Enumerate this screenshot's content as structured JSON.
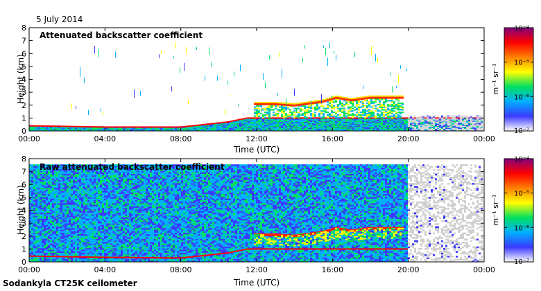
{
  "date_label": "5 July 2014",
  "footer": "Sodankyla CT25K ceilometer",
  "colorbar": {
    "unit": "m⁻¹ sr⁻¹",
    "ticks": [
      {
        "label": "10⁻⁴",
        "exp": -4
      },
      {
        "label": "10⁻⁵",
        "exp": -5
      },
      {
        "label": "10⁻⁶",
        "exp": -6
      },
      {
        "label": "10⁻⁷",
        "exp": -7
      }
    ],
    "range_log10": [
      -7,
      -4
    ],
    "colors": [
      "#ffffff",
      "#3b3bff",
      "#00b0ff",
      "#00e060",
      "#ffff00",
      "#ff8000",
      "#ff0000",
      "#800080"
    ]
  },
  "chart_data": [
    {
      "type": "heatmap",
      "title": "Attenuated backscatter coefficient",
      "xlabel": "Time (UTC)",
      "ylabel": "Height (km)",
      "xlim": [
        0,
        24
      ],
      "ylim": [
        0,
        8
      ],
      "x_ticks": [
        "00:00",
        "04:00",
        "08:00",
        "12:00",
        "16:00",
        "20:00",
        "00:00"
      ],
      "y_ticks": [
        0,
        1,
        2,
        3,
        4,
        5,
        6,
        7,
        8
      ],
      "boundary_layer_top_km": [
        {
          "time_h": 0,
          "height_km": 0.4
        },
        {
          "time_h": 4,
          "height_km": 0.3
        },
        {
          "time_h": 8,
          "height_km": 0.3
        },
        {
          "time_h": 10.5,
          "height_km": 0.7
        },
        {
          "time_h": 11.5,
          "height_km": 1.0
        }
      ],
      "cloud_layer_km": [
        {
          "time_h": 11.8,
          "height_km": 2.1
        },
        {
          "time_h": 13,
          "height_km": 2.1
        },
        {
          "time_h": 14,
          "height_km": 2.0
        },
        {
          "time_h": 15.5,
          "height_km": 2.3
        },
        {
          "time_h": 16.2,
          "height_km": 2.6
        },
        {
          "time_h": 17,
          "height_km": 2.4
        },
        {
          "time_h": 18,
          "height_km": 2.6
        },
        {
          "time_h": 19.8,
          "height_km": 2.6
        }
      ],
      "no_data_after_h": 20
    },
    {
      "type": "heatmap",
      "title": "Raw attenuated backscatter coefficient",
      "xlabel": "Time (UTC)",
      "ylabel": "Height (km)",
      "xlim": [
        0,
        24
      ],
      "ylim": [
        0,
        8
      ],
      "x_ticks": [
        "00:00",
        "04:00",
        "08:00",
        "12:00",
        "16:00",
        "20:00",
        "00:00"
      ],
      "y_ticks": [
        0,
        1,
        2,
        3,
        4,
        5,
        6,
        7,
        8
      ],
      "noise_top_km": 7.5,
      "boundary_layer_top_km": [
        {
          "time_h": 0,
          "height_km": 0.45
        },
        {
          "time_h": 4,
          "height_km": 0.35
        },
        {
          "time_h": 8,
          "height_km": 0.3
        },
        {
          "time_h": 10.5,
          "height_km": 0.7
        },
        {
          "time_h": 11.5,
          "height_km": 1.0
        }
      ],
      "cloud_layer_km": [
        {
          "time_h": 11.8,
          "height_km": 2.1
        },
        {
          "time_h": 13,
          "height_km": 2.1
        },
        {
          "time_h": 14,
          "height_km": 2.0
        },
        {
          "time_h": 15.5,
          "height_km": 2.3
        },
        {
          "time_h": 16.2,
          "height_km": 2.6
        },
        {
          "time_h": 17,
          "height_km": 2.4
        },
        {
          "time_h": 18,
          "height_km": 2.6
        },
        {
          "time_h": 19.8,
          "height_km": 2.6
        }
      ],
      "no_data_after_h": 20
    }
  ]
}
